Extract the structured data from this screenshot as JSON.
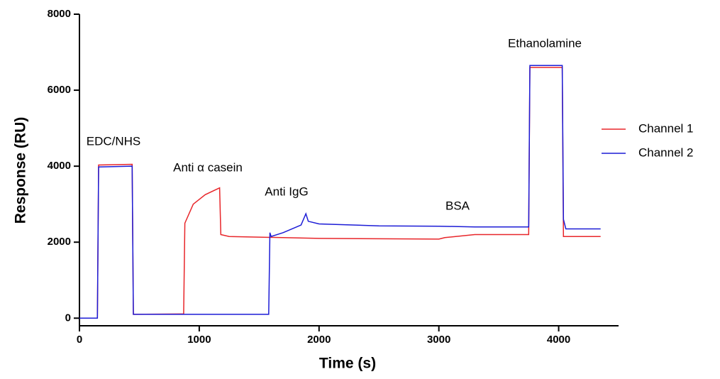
{
  "chart_data": {
    "type": "line",
    "xlabel": "Time (s)",
    "ylabel": "Response (RU)",
    "xlim": [
      0,
      4500
    ],
    "ylim": [
      -200,
      8000
    ],
    "xticks": [
      0,
      1000,
      2000,
      3000,
      4000
    ],
    "yticks": [
      0,
      2000,
      4000,
      6000,
      8000
    ],
    "legend": "right",
    "annotations": [
      "EDC/NHS",
      "Anti α casein",
      "Anti IgG",
      "BSA",
      "Ethanolamine"
    ],
    "series": [
      {
        "name": "Channel 1",
        "color": "#e8262a",
        "x": [
          0,
          150,
          160,
          440,
          450,
          870,
          880,
          950,
          1050,
          1170,
          1180,
          1250,
          2000,
          3000,
          3050,
          3300,
          3750,
          3760,
          4030,
          4040,
          4350
        ],
        "values": [
          0,
          0,
          4030,
          4050,
          100,
          110,
          2500,
          3000,
          3250,
          3430,
          2200,
          2150,
          2100,
          2080,
          2120,
          2200,
          2200,
          6600,
          6600,
          2150,
          2150
        ]
      },
      {
        "name": "Channel 2",
        "color": "#1c1cd6",
        "x": [
          0,
          150,
          160,
          440,
          450,
          1580,
          1590,
          1600,
          1700,
          1850,
          1890,
          1910,
          2000,
          2500,
          3000,
          3300,
          3750,
          3760,
          4030,
          4040,
          4060,
          4350
        ],
        "values": [
          0,
          0,
          3980,
          4000,
          100,
          100,
          2250,
          2150,
          2250,
          2450,
          2750,
          2550,
          2480,
          2430,
          2420,
          2400,
          2400,
          6650,
          6650,
          2600,
          2350,
          2350
        ]
      }
    ]
  }
}
